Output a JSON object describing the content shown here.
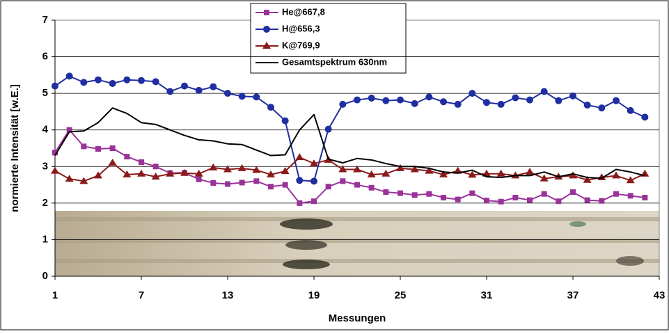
{
  "chart_data": {
    "type": "line",
    "ylabel": "normierte Intensität [w.E.]",
    "xlabel": "Messungen",
    "x": [
      1,
      2,
      3,
      4,
      5,
      6,
      7,
      8,
      9,
      10,
      11,
      12,
      13,
      14,
      15,
      16,
      17,
      18,
      19,
      20,
      21,
      22,
      23,
      24,
      25,
      26,
      27,
      28,
      29,
      30,
      31,
      32,
      33,
      34,
      35,
      36,
      37,
      38,
      39,
      40,
      41,
      42
    ],
    "xlim": [
      1,
      43
    ],
    "xticks": [
      1,
      7,
      13,
      19,
      25,
      31,
      37,
      43
    ],
    "ylim": [
      0,
      7
    ],
    "yticks": [
      0,
      1,
      2,
      3,
      4,
      5,
      6,
      7
    ],
    "grid": true,
    "legend": "top",
    "series": [
      {
        "name": "He@667,8",
        "color": "#993399",
        "marker": "square",
        "values": [
          3.38,
          4.0,
          3.55,
          3.48,
          3.5,
          3.27,
          3.12,
          3.0,
          2.82,
          2.83,
          2.65,
          2.55,
          2.52,
          2.56,
          2.6,
          2.45,
          2.5,
          2.0,
          2.05,
          2.45,
          2.6,
          2.5,
          2.42,
          2.3,
          2.27,
          2.22,
          2.25,
          2.15,
          2.1,
          2.27,
          2.07,
          2.04,
          2.15,
          2.08,
          2.25,
          2.05,
          2.3,
          2.08,
          2.06,
          2.25,
          2.2,
          2.15
        ]
      },
      {
        "name": "H@656,3",
        "color": "#1f2ea0",
        "marker": "circle",
        "values": [
          5.2,
          5.47,
          5.3,
          5.37,
          5.27,
          5.37,
          5.35,
          5.32,
          5.05,
          5.2,
          5.08,
          5.18,
          5.0,
          4.92,
          4.9,
          4.62,
          4.25,
          2.62,
          2.6,
          4.02,
          4.7,
          4.82,
          4.87,
          4.8,
          4.82,
          4.72,
          4.9,
          4.77,
          4.7,
          5.0,
          4.75,
          4.7,
          4.88,
          4.82,
          5.05,
          4.8,
          4.93,
          4.68,
          4.6,
          4.8,
          4.53,
          4.35
        ]
      },
      {
        "name": "K@769,9",
        "color": "#8b1a1a",
        "marker": "triangle",
        "values": [
          2.88,
          2.66,
          2.6,
          2.75,
          3.1,
          2.78,
          2.8,
          2.72,
          2.8,
          2.82,
          2.8,
          2.97,
          2.92,
          2.95,
          2.9,
          2.78,
          2.87,
          3.25,
          3.08,
          3.18,
          2.92,
          2.92,
          2.78,
          2.8,
          2.95,
          2.92,
          2.88,
          2.78,
          2.88,
          2.77,
          2.8,
          2.8,
          2.75,
          2.85,
          2.67,
          2.72,
          2.75,
          2.63,
          2.7,
          2.75,
          2.62,
          2.8
        ]
      },
      {
        "name": "Gesamtspektrum 630nm",
        "color": "#000000",
        "marker": "none",
        "values": [
          3.3,
          3.95,
          3.97,
          4.2,
          4.6,
          4.45,
          4.2,
          4.15,
          4.0,
          3.85,
          3.73,
          3.7,
          3.62,
          3.6,
          3.45,
          3.3,
          3.32,
          4.0,
          4.42,
          3.2,
          3.1,
          3.22,
          3.18,
          3.08,
          3.0,
          3.0,
          2.95,
          2.85,
          2.82,
          2.9,
          2.72,
          2.7,
          2.75,
          2.75,
          2.85,
          2.72,
          2.8,
          2.7,
          2.68,
          2.92,
          2.85,
          2.75
        ]
      }
    ]
  }
}
